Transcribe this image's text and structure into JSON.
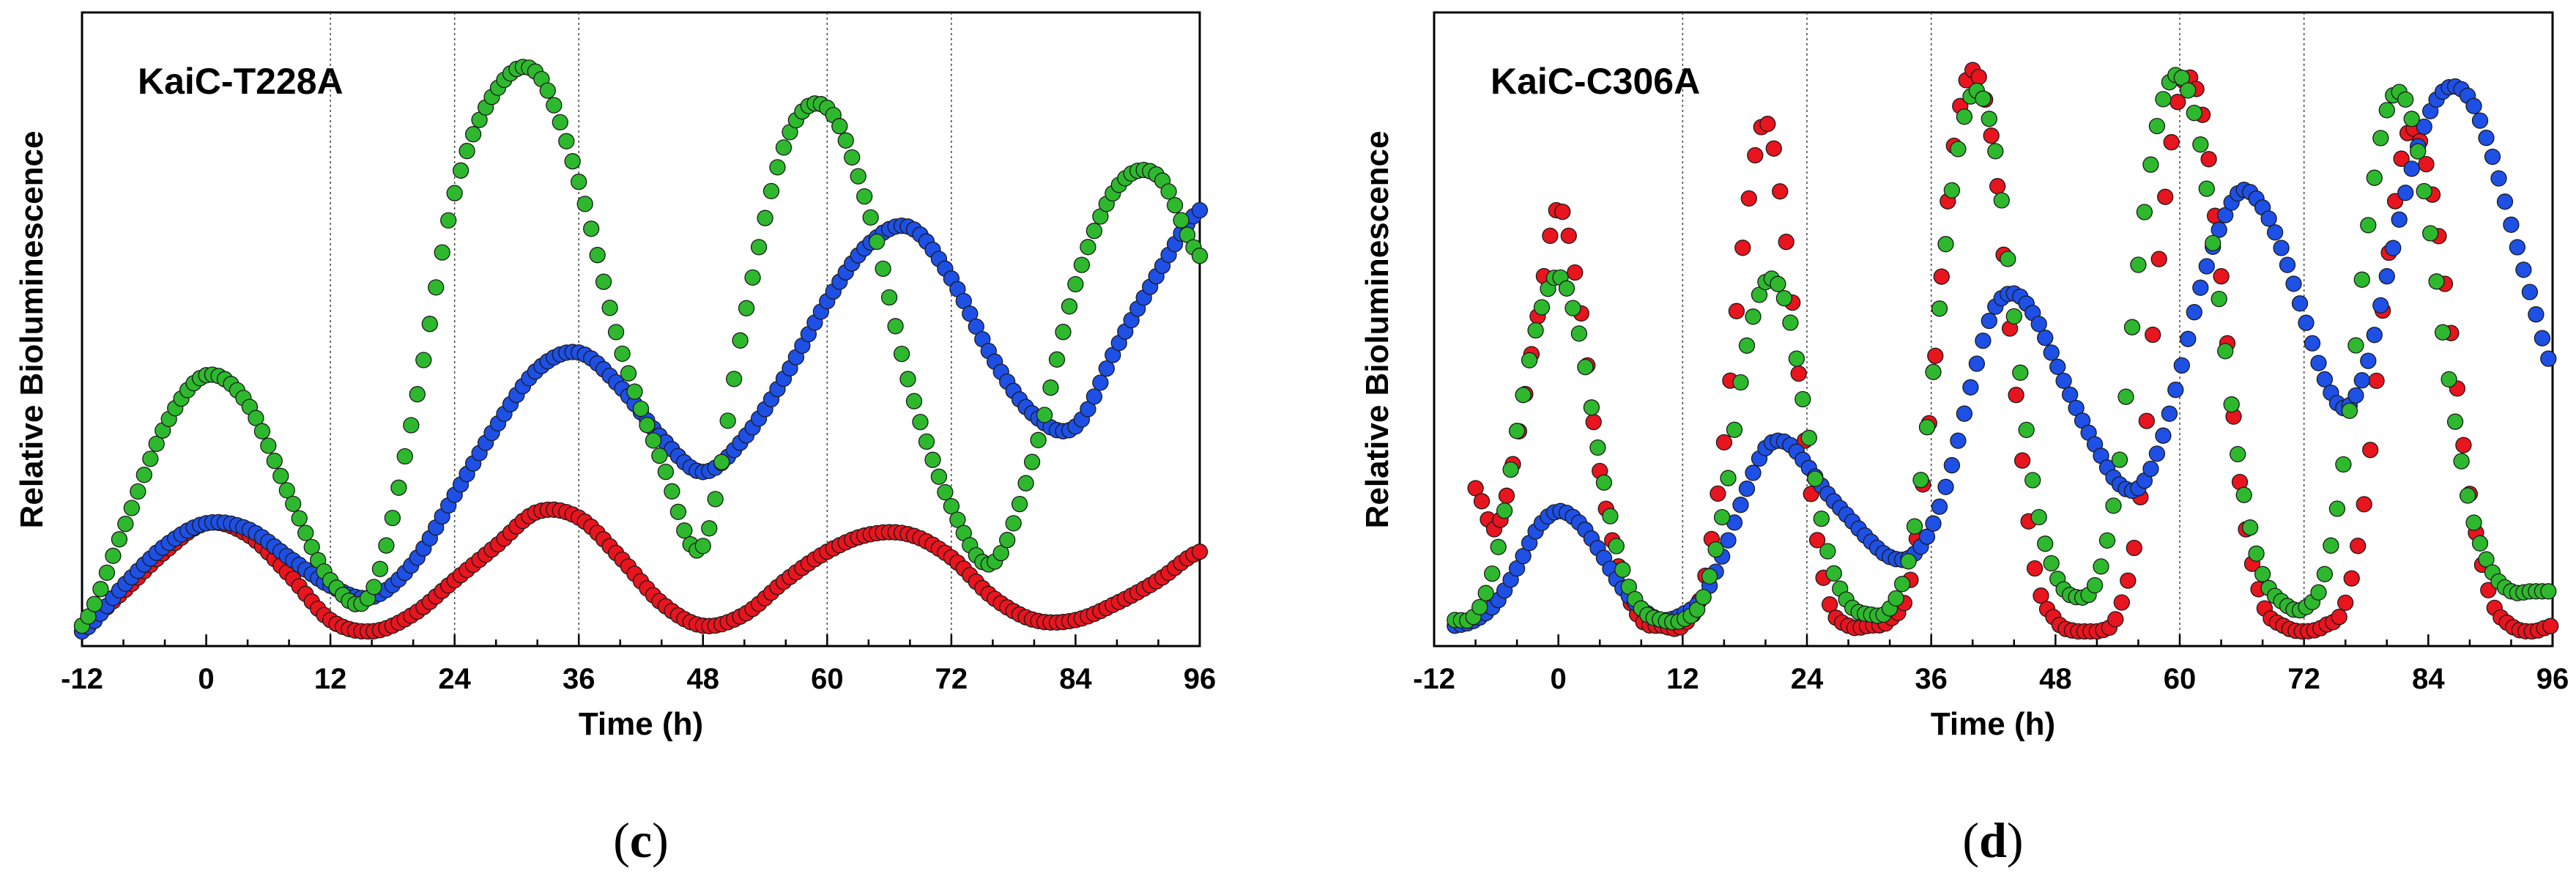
{
  "chart_data": [
    {
      "type": "scatter",
      "panel_label": "c",
      "title": "KaiC-T228A",
      "xlabel": "Time (h)",
      "ylabel": "Relative Bioluminescence",
      "xlim": [
        -12,
        96
      ],
      "ylim": [
        0,
        1.0
      ],
      "xticks": [
        -12,
        0,
        12,
        24,
        36,
        48,
        60,
        72,
        84,
        96
      ],
      "vlines": [
        12,
        24,
        36,
        60,
        72
      ],
      "series": [
        {
          "name": "red",
          "color": "#e8141e",
          "x": [
            -12,
            -8,
            -4,
            0,
            4,
            8,
            12,
            16,
            20,
            24,
            28,
            32,
            36,
            40,
            44,
            48,
            52,
            56,
            60,
            64,
            68,
            72,
            76,
            80,
            84,
            88,
            92,
            96
          ],
          "y": [
            0.01,
            0.07,
            0.14,
            0.19,
            0.17,
            0.1,
            0.02,
            0.0,
            0.03,
            0.09,
            0.15,
            0.21,
            0.2,
            0.13,
            0.05,
            0.01,
            0.03,
            0.09,
            0.14,
            0.17,
            0.17,
            0.13,
            0.06,
            0.02,
            0.02,
            0.05,
            0.09,
            0.14
          ]
        },
        {
          "name": "blue",
          "color": "#1e50e6",
          "x": [
            -12,
            -8,
            -4,
            0,
            4,
            8,
            12,
            16,
            20,
            24,
            28,
            32,
            36,
            40,
            44,
            48,
            52,
            56,
            60,
            64,
            68,
            72,
            76,
            80,
            84,
            88,
            92,
            96
          ],
          "y": [
            0.0,
            0.08,
            0.15,
            0.19,
            0.18,
            0.13,
            0.08,
            0.06,
            0.12,
            0.24,
            0.36,
            0.46,
            0.49,
            0.43,
            0.34,
            0.28,
            0.34,
            0.45,
            0.58,
            0.68,
            0.71,
            0.62,
            0.48,
            0.38,
            0.36,
            0.5,
            0.63,
            0.74
          ]
        },
        {
          "name": "green",
          "color": "#2eb82e",
          "x": [
            -12,
            -8,
            -4,
            0,
            4,
            8,
            12,
            16,
            20,
            24,
            28,
            32,
            36,
            40,
            44,
            48,
            52,
            56,
            60,
            64,
            68,
            72,
            76,
            80,
            84,
            88,
            92,
            96
          ],
          "y": [
            0.01,
            0.18,
            0.36,
            0.45,
            0.4,
            0.24,
            0.09,
            0.07,
            0.38,
            0.77,
            0.95,
            0.98,
            0.79,
            0.5,
            0.3,
            0.15,
            0.55,
            0.86,
            0.92,
            0.74,
            0.43,
            0.22,
            0.12,
            0.31,
            0.61,
            0.78,
            0.8,
            0.66
          ]
        }
      ]
    },
    {
      "type": "scatter",
      "panel_label": "d",
      "title": "KaiC-C306A",
      "xlabel": "Time (h)",
      "ylabel": "Relative Bioluminescence",
      "xlim": [
        -12,
        96
      ],
      "ylim": [
        0,
        1.0
      ],
      "xticks": [
        -12,
        0,
        12,
        24,
        36,
        48,
        60,
        72,
        84,
        96
      ],
      "vlines": [
        12,
        24,
        36,
        60,
        72
      ],
      "series": [
        {
          "name": "red",
          "color": "#e8141e",
          "x": [
            -8,
            -6,
            -4,
            -2,
            0,
            2,
            4,
            6,
            8,
            10,
            12,
            14,
            16,
            18,
            20,
            22,
            24,
            26,
            28,
            30,
            32,
            34,
            36,
            38,
            40,
            42,
            44,
            46,
            48,
            50,
            52,
            54,
            56,
            58,
            60,
            62,
            64,
            66,
            68,
            70,
            72,
            74,
            76,
            78,
            80,
            82,
            84,
            86,
            88,
            90,
            92,
            94,
            96
          ],
          "y": [
            0.25,
            0.18,
            0.33,
            0.55,
            0.74,
            0.58,
            0.28,
            0.1,
            0.02,
            0.01,
            0.01,
            0.08,
            0.33,
            0.7,
            0.89,
            0.68,
            0.3,
            0.06,
            0.01,
            0.01,
            0.02,
            0.09,
            0.4,
            0.82,
            0.98,
            0.84,
            0.45,
            0.11,
            0.02,
            0.0,
            0.0,
            0.03,
            0.2,
            0.65,
            0.94,
            0.92,
            0.62,
            0.23,
            0.05,
            0.01,
            0.0,
            0.01,
            0.05,
            0.25,
            0.63,
            0.87,
            0.8,
            0.55,
            0.24,
            0.06,
            0.01,
            0.0,
            0.01
          ]
        },
        {
          "name": "blue",
          "color": "#1e50e6",
          "x": [
            -10,
            -8,
            -6,
            -4,
            -2,
            0,
            2,
            4,
            6,
            8,
            10,
            12,
            14,
            16,
            18,
            20,
            22,
            24,
            26,
            28,
            30,
            32,
            34,
            36,
            38,
            40,
            42,
            44,
            46,
            48,
            50,
            52,
            54,
            56,
            58,
            60,
            62,
            64,
            66,
            68,
            70,
            72,
            74,
            76,
            78,
            80,
            82,
            84,
            86,
            88,
            90,
            92,
            94,
            96
          ],
          "y": [
            0.01,
            0.02,
            0.05,
            0.11,
            0.18,
            0.21,
            0.19,
            0.14,
            0.08,
            0.04,
            0.02,
            0.03,
            0.06,
            0.14,
            0.24,
            0.32,
            0.33,
            0.29,
            0.24,
            0.2,
            0.16,
            0.13,
            0.13,
            0.18,
            0.29,
            0.44,
            0.56,
            0.59,
            0.55,
            0.47,
            0.39,
            0.32,
            0.26,
            0.25,
            0.32,
            0.45,
            0.6,
            0.71,
            0.77,
            0.74,
            0.66,
            0.55,
            0.44,
            0.39,
            0.46,
            0.62,
            0.78,
            0.9,
            0.95,
            0.93,
            0.84,
            0.71,
            0.58,
            0.46
          ]
        },
        {
          "name": "green",
          "color": "#2eb82e",
          "x": [
            -10,
            -8,
            -6,
            -4,
            -2,
            0,
            2,
            4,
            6,
            8,
            10,
            12,
            14,
            16,
            18,
            20,
            22,
            24,
            26,
            28,
            30,
            32,
            34,
            36,
            38,
            40,
            42,
            44,
            46,
            48,
            50,
            52,
            54,
            56,
            58,
            60,
            62,
            64,
            66,
            68,
            70,
            72,
            74,
            76,
            78,
            80,
            82,
            84,
            86,
            88,
            90,
            92,
            94,
            96
          ],
          "y": [
            0.02,
            0.03,
            0.13,
            0.35,
            0.54,
            0.62,
            0.52,
            0.3,
            0.12,
            0.04,
            0.02,
            0.02,
            0.06,
            0.22,
            0.48,
            0.61,
            0.57,
            0.36,
            0.14,
            0.05,
            0.03,
            0.04,
            0.14,
            0.42,
            0.77,
            0.94,
            0.86,
            0.55,
            0.24,
            0.1,
            0.06,
            0.09,
            0.27,
            0.64,
            0.9,
            0.97,
            0.85,
            0.55,
            0.26,
            0.1,
            0.05,
            0.04,
            0.1,
            0.32,
            0.68,
            0.91,
            0.92,
            0.72,
            0.44,
            0.22,
            0.11,
            0.07,
            0.07,
            0.07
          ]
        }
      ]
    }
  ]
}
